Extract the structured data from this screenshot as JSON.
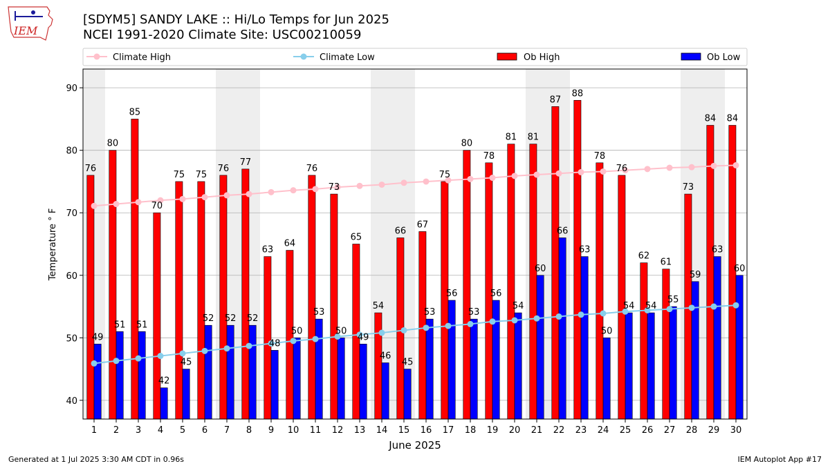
{
  "header": {
    "title_line1": "[SDYM5] SANDY LAKE :: Hi/Lo Temps for Jun 2025",
    "title_line2": "NCEI 1991-2020 Climate Site: USC00210059"
  },
  "logo": {
    "text": "IEM"
  },
  "footer": {
    "left": "Generated at 1 Jul 2025 3:30 AM CDT in 0.96s",
    "right": "IEM Autoplot App #17"
  },
  "colors": {
    "ob_high": "#ff0000",
    "ob_low": "#0000ff",
    "climate_high": "#ffc0cb",
    "climate_low": "#87ceeb",
    "weekend_band": "#eeeeee",
    "grid": "#b0b0b0"
  },
  "chart_data": {
    "type": "bar",
    "xlabel": "June 2025",
    "ylabel": "Temperature $^\\circ$F",
    "ylabel_display": "Temperature ° F",
    "ylim": [
      37,
      93
    ],
    "yticks": [
      40,
      50,
      60,
      70,
      80,
      90
    ],
    "grid": "horizontal",
    "legend_position": "top",
    "categories": [
      "1",
      "2",
      "3",
      "4",
      "5",
      "6",
      "7",
      "8",
      "9",
      "10",
      "11",
      "12",
      "13",
      "14",
      "15",
      "16",
      "17",
      "18",
      "19",
      "20",
      "21",
      "22",
      "23",
      "24",
      "25",
      "26",
      "27",
      "28",
      "29",
      "30"
    ],
    "shaded_days": [
      1,
      7,
      8,
      14,
      15,
      21,
      22,
      28,
      29
    ],
    "series": [
      {
        "name": "Climate High",
        "kind": "line",
        "values": [
          71.1,
          71.4,
          71.7,
          72.0,
          72.2,
          72.5,
          72.8,
          73.0,
          73.3,
          73.6,
          73.8,
          74.1,
          74.3,
          74.5,
          74.8,
          75.0,
          75.2,
          75.4,
          75.6,
          75.9,
          76.1,
          76.3,
          76.5,
          76.6,
          76.8,
          77.0,
          77.2,
          77.3,
          77.5,
          77.6
        ]
      },
      {
        "name": "Climate Low",
        "kind": "line",
        "values": [
          45.9,
          46.3,
          46.7,
          47.1,
          47.5,
          47.9,
          48.3,
          48.7,
          49.1,
          49.5,
          49.8,
          50.2,
          50.5,
          50.8,
          51.2,
          51.6,
          51.9,
          52.2,
          52.6,
          52.8,
          53.1,
          53.4,
          53.7,
          53.9,
          54.2,
          54.4,
          54.6,
          54.8,
          55.0,
          55.2
        ]
      },
      {
        "name": "Ob High",
        "kind": "bar",
        "values": [
          76,
          80,
          85,
          70,
          75,
          75,
          76,
          77,
          63,
          64,
          76,
          73,
          65,
          54,
          66,
          67,
          75,
          80,
          78,
          81,
          81,
          87,
          88,
          78,
          76,
          62,
          61,
          73,
          84,
          84
        ]
      },
      {
        "name": "Ob Low",
        "kind": "bar",
        "values": [
          49,
          51,
          51,
          42,
          45,
          52,
          52,
          52,
          48,
          50,
          53,
          50,
          49,
          46,
          45,
          53,
          56,
          53,
          56,
          54,
          60,
          66,
          63,
          50,
          54,
          54,
          55,
          59,
          63,
          60
        ]
      }
    ]
  }
}
